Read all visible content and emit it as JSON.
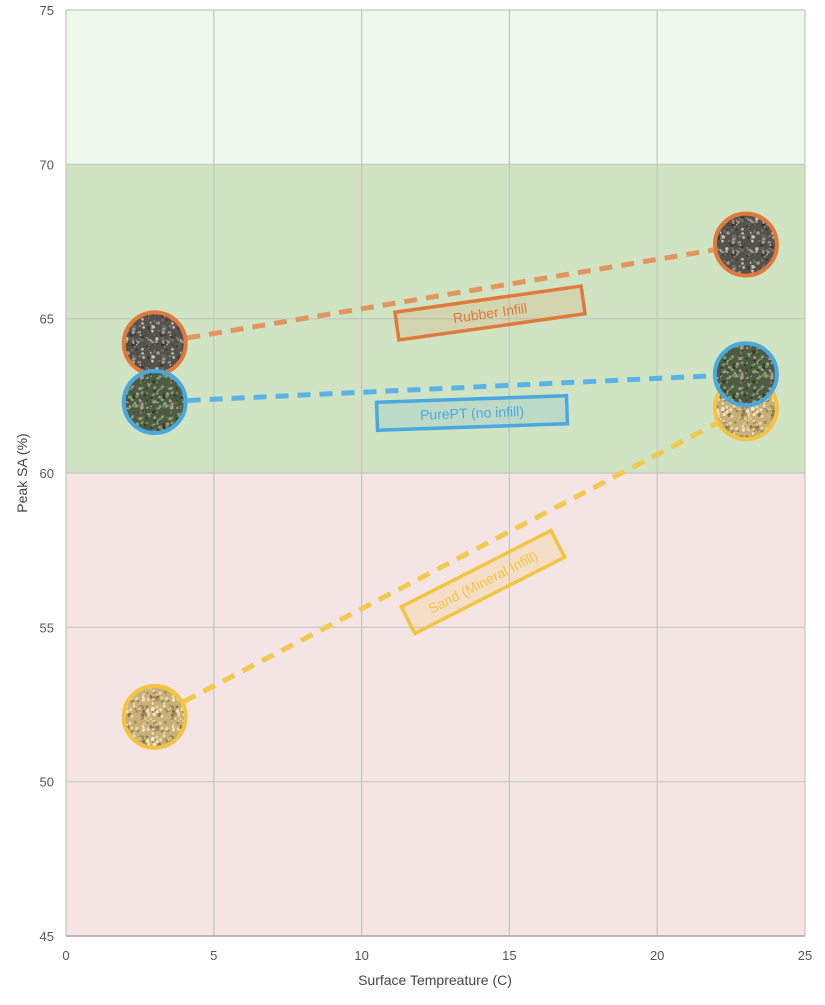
{
  "chart_data": {
    "type": "scatter",
    "title": "",
    "xlabel": "Surface Tempreature (C)",
    "ylabel": "Peak SA (%)",
    "xlim": [
      0,
      25
    ],
    "ylim": [
      45,
      75
    ],
    "x_ticks": [
      "0",
      "5",
      "10",
      "15",
      "20",
      "25"
    ],
    "y_ticks": [
      "45",
      "50",
      "55",
      "60",
      "65",
      "70",
      "75"
    ],
    "grid": true,
    "bands": [
      {
        "from": 70,
        "to": 75,
        "color": "#eef8ec"
      },
      {
        "from": 60,
        "to": 70,
        "color": "#d0e3c2"
      },
      {
        "from": 45,
        "to": 60,
        "color": "#f5e4e4"
      }
    ],
    "series": [
      {
        "name": "Rubber Infill",
        "color": "#e07a3a",
        "line_color": "#e3955e",
        "texture": "rubber-granules",
        "x": [
          3,
          23
        ],
        "y": [
          64.2,
          67.4
        ]
      },
      {
        "name": "PurePT (no infill)",
        "color": "#4aa8e0",
        "line_color": "#5ab3e6",
        "texture": "grass",
        "x": [
          3,
          23
        ],
        "y": [
          62.3,
          63.2
        ]
      },
      {
        "name": "Sand (Mineral Infill)",
        "color": "#f2c442",
        "line_color": "#f2c84e",
        "texture": "sand",
        "x": [
          3,
          23
        ],
        "y": [
          52.1,
          62.1
        ]
      }
    ]
  }
}
